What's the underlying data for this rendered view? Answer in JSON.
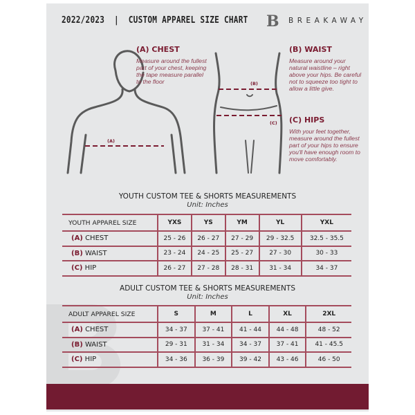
{
  "header": {
    "title": "2022/2023  |  CUSTOM APPAREL SIZE CHART",
    "brand": "BREAKAWAY",
    "logo_letter": "B"
  },
  "guide": {
    "chest": {
      "heading": "(A) CHEST",
      "text": "Measure around the fullest part of your chest, keeping the tape measure parallel to the floor",
      "marker": "(A)"
    },
    "waist": {
      "heading": "(B) WAIST",
      "text": "Measure around your natural waistline – right above your hips. Be careful not to squeeze too tight to allow a little give.",
      "marker": "(B)"
    },
    "hips": {
      "heading": "(C) HIPS",
      "text": "With your feet together, measure around the fullest part of your hips to ensure you'll have enough room to move comfortably.",
      "marker": "(C)"
    }
  },
  "colors": {
    "accent": "#721b31",
    "background": "#e6e7e8"
  },
  "youth": {
    "title": "YOUTH CUSTOM TEE & SHORTS MEASUREMENTS",
    "unit": "Unit: Inches",
    "header": [
      "YOUTH APPAREL SIZE",
      "YXS",
      "YS",
      "YM",
      "YL",
      "YXL"
    ],
    "rows": [
      {
        "letter": "(A)",
        "label": "CHEST",
        "values": [
          "25 - 26",
          "26 - 27",
          "27 - 29",
          "29 - 32.5",
          "32.5 - 35.5"
        ]
      },
      {
        "letter": "(B)",
        "label": "WAIST",
        "values": [
          "23 - 24",
          "24 - 25",
          "25 - 27",
          "27 - 30",
          "30 - 33"
        ]
      },
      {
        "letter": "(C)",
        "label": "HIP",
        "values": [
          "26 - 27",
          "27 - 28",
          "28 - 31",
          "31 - 34",
          "34 - 37"
        ]
      }
    ]
  },
  "adult": {
    "title": "ADULT CUSTOM TEE & SHORTS MEASUREMENTS",
    "unit": "Unit: Inches",
    "header": [
      "ADULT APPAREL SIZE",
      "S",
      "M",
      "L",
      "XL",
      "2XL"
    ],
    "rows": [
      {
        "letter": "(A)",
        "label": "CHEST",
        "values": [
          "34 - 37",
          "37 - 41",
          "41 - 44",
          "44 - 48",
          "48 - 52"
        ]
      },
      {
        "letter": "(B)",
        "label": "WAIST",
        "values": [
          "29 - 31",
          "31 - 34",
          "34 - 37",
          "37 - 41",
          "41 - 45.5"
        ]
      },
      {
        "letter": "(C)",
        "label": "HIP",
        "values": [
          "34 - 36",
          "36 - 39",
          "39 - 42",
          "43 - 46",
          "46 - 50"
        ]
      }
    ]
  }
}
